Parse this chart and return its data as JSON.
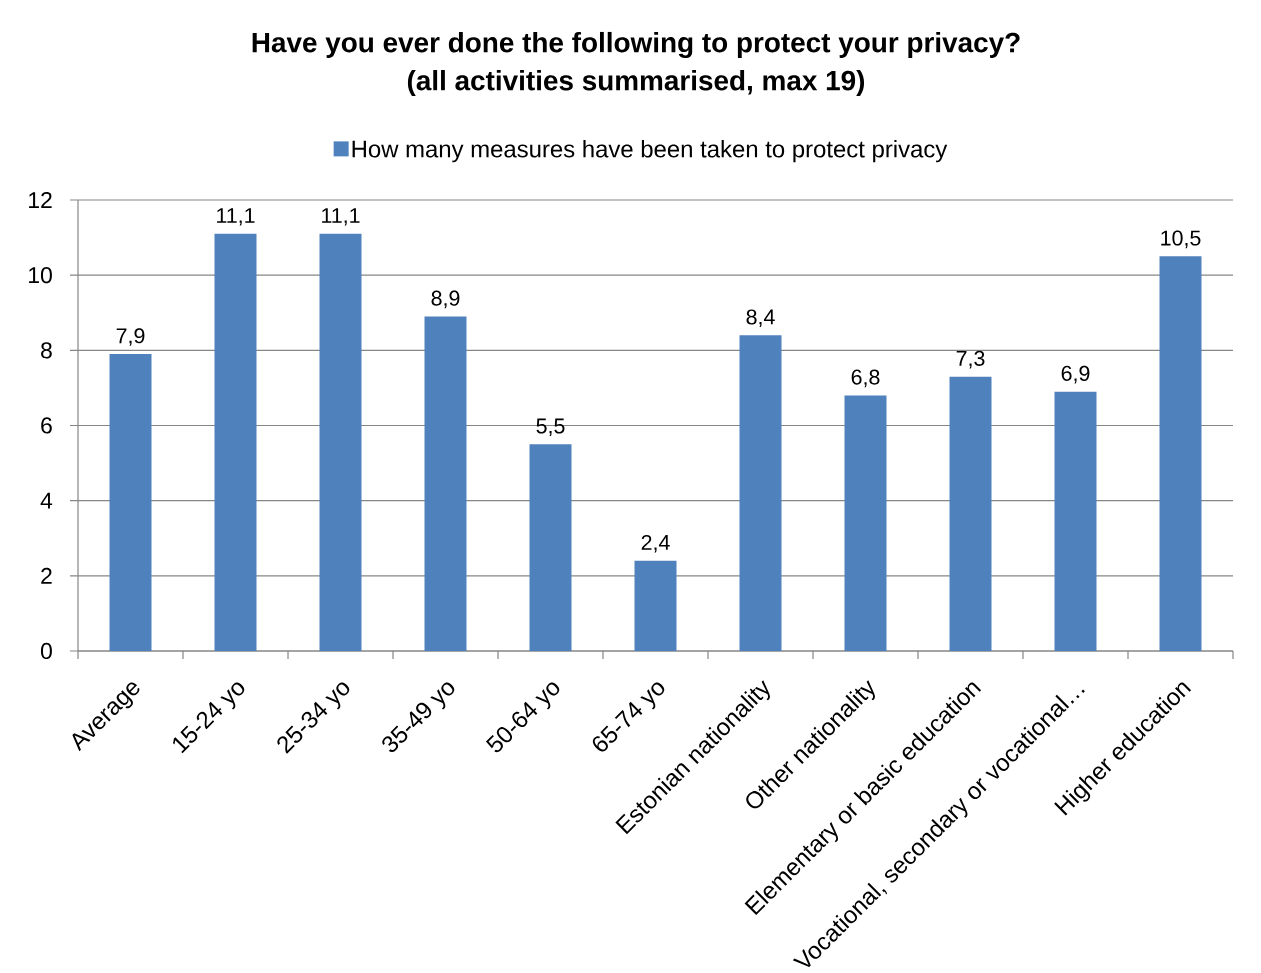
{
  "chart_data": {
    "type": "bar",
    "title": "Have you ever done the following to protect your privacy?",
    "subtitle": "(all activities summarised, max 19)",
    "categories": [
      "Average",
      "15-24 yo",
      "25-34 yo",
      "35-49 yo",
      "50-64 yo",
      "65-74 yo",
      "Estonian nationality",
      "Other nationality",
      "Elementary or basic education",
      "Vocational, secondary or vocational…",
      "Higher education"
    ],
    "series": [
      {
        "name": "How many measures have been taken to protect privacy",
        "color": "#4f81bd",
        "values": [
          7.9,
          11.1,
          11.1,
          8.9,
          5.5,
          2.4,
          8.4,
          6.8,
          7.3,
          6.9,
          10.5
        ],
        "value_labels": [
          "7,9",
          "11,1",
          "11,1",
          "8,9",
          "5,5",
          "2,4",
          "8,4",
          "6,8",
          "7,3",
          "6,9",
          "10,5"
        ]
      }
    ],
    "ylim": [
      0,
      12
    ],
    "yticks": [
      0,
      2,
      4,
      6,
      8,
      10,
      12
    ],
    "grid": "y",
    "legend": "top"
  }
}
